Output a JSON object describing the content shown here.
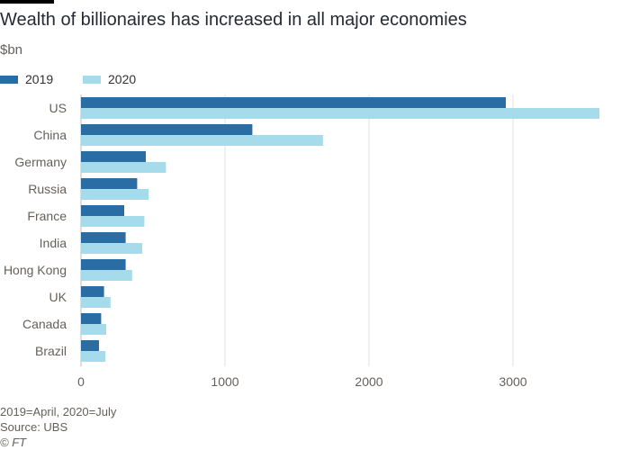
{
  "header": {
    "title": "Wealth of billionaires has increased in all major economies",
    "subtitle": "$bn"
  },
  "legend": [
    {
      "label": "2019",
      "color": "#2a6da5"
    },
    {
      "label": "2020",
      "color": "#a6dbec"
    }
  ],
  "footer": {
    "note": "2019=April, 2020=July",
    "source": "Source: UBS",
    "credit": "© FT"
  },
  "chart_data": {
    "type": "bar",
    "orientation": "horizontal",
    "title": "Wealth of billionaires has increased in all major economies",
    "ylabel": "$bn",
    "categories": [
      "US",
      "China",
      "Germany",
      "Russia",
      "France",
      "India",
      "Hong Kong",
      "UK",
      "Canada",
      "Brazil"
    ],
    "series": [
      {
        "name": "2019",
        "color": "#2a6da5",
        "values": [
          2950,
          1190,
          450,
          390,
          300,
          310,
          310,
          160,
          140,
          125
        ]
      },
      {
        "name": "2020",
        "color": "#a6dbec",
        "values": [
          3600,
          1680,
          590,
          470,
          440,
          425,
          355,
          205,
          175,
          170
        ]
      }
    ],
    "xlim": [
      0,
      3600
    ],
    "xticks": [
      0,
      1000,
      2000,
      3000
    ],
    "grid": true,
    "legend_position": "top-left"
  }
}
